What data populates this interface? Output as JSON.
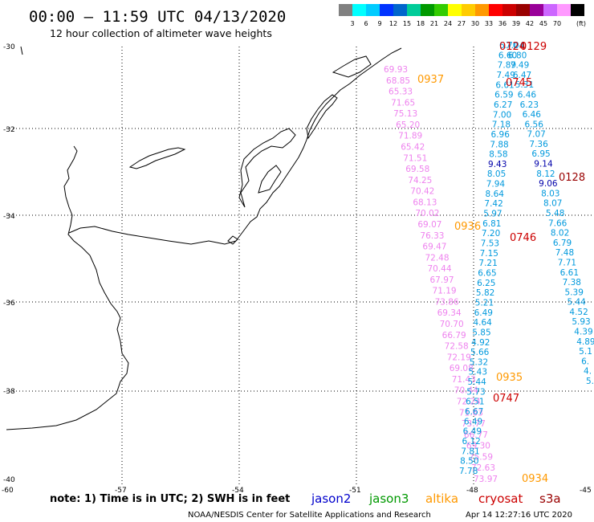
{
  "header": {
    "title": "00:00 — 11:59 UTC 04/13/2020",
    "subtitle": "12 hour collection of altimeter wave heights"
  },
  "colorbar": {
    "unit": "(ft)",
    "colors": [
      "#808080",
      "#00ffff",
      "#00ccff",
      "#0033ff",
      "#0066cc",
      "#00cc99",
      "#009900",
      "#33cc00",
      "#ffff00",
      "#ffcc00",
      "#ff9900",
      "#ff0000",
      "#cc0000",
      "#990000",
      "#990099",
      "#cc66ff",
      "#ff99ff",
      "#000000"
    ],
    "ticks": [
      "3",
      "6",
      "9",
      "12",
      "15",
      "18",
      "21",
      "24",
      "27",
      "30",
      "33",
      "36",
      "39",
      "42",
      "45",
      "70"
    ]
  },
  "axes": {
    "lat_labels": [
      "-30",
      "-32",
      "-34",
      "-36",
      "-38",
      "-40"
    ],
    "lon_labels": [
      "-60",
      "-57",
      "-54",
      "-51",
      "-48",
      "-45"
    ]
  },
  "note": "note: 1) Time is in UTC; 2) SWH is in feet",
  "legend": [
    {
      "name": "jason2",
      "color": "#0000cc"
    },
    {
      "name": "jason3",
      "color": "#009900"
    },
    {
      "name": "altika",
      "color": "#ff9900"
    },
    {
      "name": "cryosat",
      "color": "#cc0000"
    },
    {
      "name": "s3a",
      "color": "#990000"
    }
  ],
  "footer": {
    "credit": "NOAA/NESDIS Center for Satellite Applications and Research",
    "timestamp": "Apr 14 12:27:16 UTC 2020"
  },
  "tracks": {
    "pink": {
      "color": "#ee82ee",
      "values": [
        "69.93",
        "68.85",
        "65.33",
        "71.65",
        "75.13",
        "65.20",
        "71.89",
        "65.42",
        "71.51",
        "69.58",
        "74.25",
        "70.42",
        "68.13",
        "70.02",
        "69.07",
        "76.33",
        "69.47",
        "72.48",
        "70.44",
        "67.97",
        "71.19",
        "73.86",
        "69.34",
        "70.70",
        "66.79",
        "72.58",
        "72.19",
        "69.08",
        "71.43",
        "70.44",
        "72.24",
        "71.63",
        "73.77",
        "66.77",
        "69.30",
        "75.59",
        "72.63",
        "73.97"
      ]
    },
    "blue_a": {
      "color": "#0099dd",
      "values": [
        "6.70",
        "6.60",
        "7.89",
        "7.49",
        "6.61",
        "6.59",
        "6.27",
        "7.00",
        "7.18",
        "6.96",
        "7.88",
        "8.58",
        "9.43",
        "8.05",
        "7.94",
        "8.64",
        "7.42",
        "5.97",
        "6.81",
        "7.20",
        "7.53",
        "7.15",
        "7.21",
        "6.65",
        "6.25",
        "5.82",
        "5.21",
        "6.49",
        "4.64",
        "5.85",
        "4.92",
        "5.66",
        "5.32",
        "5.43",
        "5.44",
        "5.73",
        "6.51",
        "6.67",
        "6.49",
        "6.49",
        "6.12",
        "7.81",
        "8.50",
        "7.78"
      ]
    },
    "blue_b": {
      "color": "#0099dd",
      "values": [
        "7.04",
        "6.80",
        "7.49",
        "6.47",
        "5.31",
        "6.46",
        "6.23",
        "6.46",
        "6.56",
        "7.07",
        "7.36",
        "6.95",
        "9.14",
        "8.12",
        "9.06",
        "8.03",
        "8.07",
        "5.48",
        "7.66",
        "8.02",
        "6.79",
        "7.48",
        "7.71",
        "6.61",
        "7.38",
        "5.39",
        "5.44",
        "4.52",
        "5.93",
        "4.39",
        "4.89",
        "5.1",
        "6.",
        "4.",
        "5."
      ]
    },
    "pass_times": [
      {
        "label": "0129",
        "color": "#cc0000"
      },
      {
        "label": "0124",
        "color": "#cc0000"
      },
      {
        "label": "0937",
        "color": "#ff9900"
      },
      {
        "label": "0745",
        "color": "#cc0000"
      },
      {
        "label": "0128",
        "color": "#990000"
      },
      {
        "label": "0936",
        "color": "#ff9900"
      },
      {
        "label": "0746",
        "color": "#cc0000"
      },
      {
        "label": "0935",
        "color": "#ff9900"
      },
      {
        "label": "0747",
        "color": "#cc0000"
      },
      {
        "label": "0934",
        "color": "#ff9900"
      }
    ]
  }
}
